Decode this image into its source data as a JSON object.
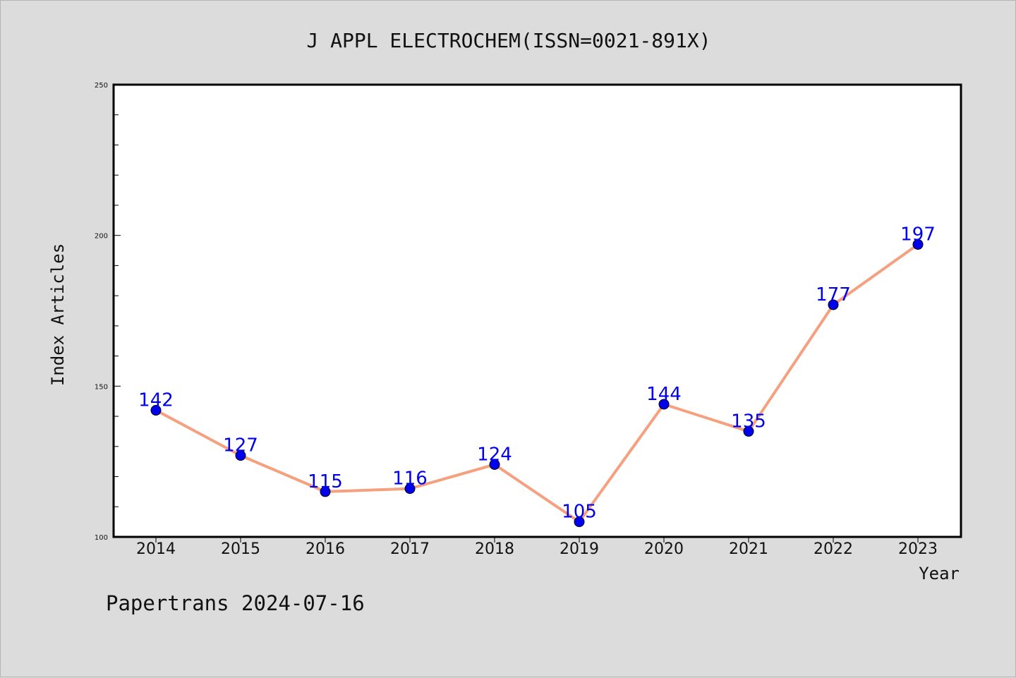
{
  "chart_data": {
    "type": "line",
    "title": "J APPL ELECTROCHEM(ISSN=0021-891X)",
    "xlabel": "Year",
    "ylabel": "Index Articles",
    "categories": [
      "2014",
      "2015",
      "2016",
      "2017",
      "2018",
      "2019",
      "2020",
      "2021",
      "2022",
      "2023"
    ],
    "series": [
      {
        "values": [
          142,
          127,
          115,
          116,
          124,
          105,
          144,
          135,
          177,
          197
        ]
      }
    ],
    "ylim": [
      100,
      250
    ],
    "yticks": [
      100,
      150,
      200,
      250
    ],
    "grid": false,
    "line_color": "#f5a07e",
    "marker_color": "#0000ee",
    "label_color": "#0000ee"
  },
  "footer": "Papertrans 2024-07-16"
}
